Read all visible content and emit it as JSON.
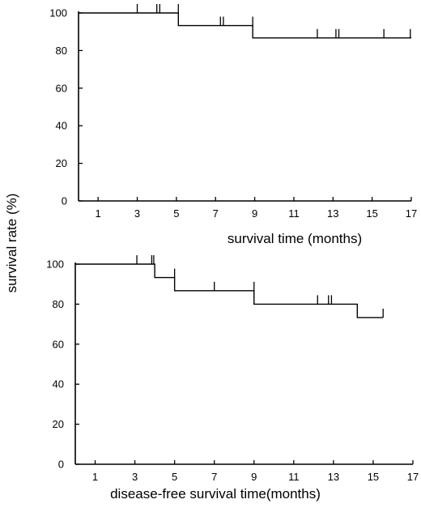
{
  "shared_ylabel": "survival rate (%)",
  "chart_data": [
    {
      "type": "line",
      "step": true,
      "xlabel": "survival time (months)",
      "xlim": [
        0,
        17
      ],
      "ylim": [
        0,
        100
      ],
      "xticks": [
        1,
        3,
        5,
        7,
        9,
        11,
        13,
        15,
        17
      ],
      "yticks": [
        0,
        20,
        40,
        60,
        80,
        100
      ],
      "steps": [
        {
          "x": 0,
          "y": 100
        },
        {
          "x": 5.1,
          "y": 93.3
        },
        {
          "x": 8.9,
          "y": 86.7
        }
      ],
      "end_x": 17,
      "censored": [
        {
          "x": 3.0,
          "y": 100
        },
        {
          "x": 4.0,
          "y": 100
        },
        {
          "x": 4.15,
          "y": 100
        },
        {
          "x": 5.1,
          "y": 100
        },
        {
          "x": 7.25,
          "y": 93.3
        },
        {
          "x": 7.4,
          "y": 93.3
        },
        {
          "x": 8.9,
          "y": 93.3
        },
        {
          "x": 12.2,
          "y": 86.7
        },
        {
          "x": 13.15,
          "y": 86.7
        },
        {
          "x": 13.3,
          "y": 86.7
        },
        {
          "x": 15.6,
          "y": 86.7
        },
        {
          "x": 16.95,
          "y": 86.7
        }
      ]
    },
    {
      "type": "line",
      "step": true,
      "xlabel": "disease-free survival time(months)",
      "xlim": [
        0,
        17
      ],
      "ylim": [
        0,
        100
      ],
      "xticks": [
        1,
        3,
        5,
        7,
        9,
        11,
        13,
        15,
        17
      ],
      "yticks": [
        0,
        20,
        40,
        60,
        80,
        100
      ],
      "steps": [
        {
          "x": 0,
          "y": 100
        },
        {
          "x": 4.0,
          "y": 93.3
        },
        {
          "x": 5.0,
          "y": 86.7
        },
        {
          "x": 9.0,
          "y": 80.0
        },
        {
          "x": 14.2,
          "y": 73.3
        }
      ],
      "end_x": 15.5,
      "censored": [
        {
          "x": 3.1,
          "y": 100
        },
        {
          "x": 3.85,
          "y": 100
        },
        {
          "x": 3.95,
          "y": 100
        },
        {
          "x": 5.0,
          "y": 93.3
        },
        {
          "x": 7.0,
          "y": 86.7
        },
        {
          "x": 9.0,
          "y": 86.7
        },
        {
          "x": 12.2,
          "y": 80.0
        },
        {
          "x": 12.75,
          "y": 80.0
        },
        {
          "x": 12.9,
          "y": 80.0
        },
        {
          "x": 15.5,
          "y": 73.3
        }
      ]
    }
  ]
}
